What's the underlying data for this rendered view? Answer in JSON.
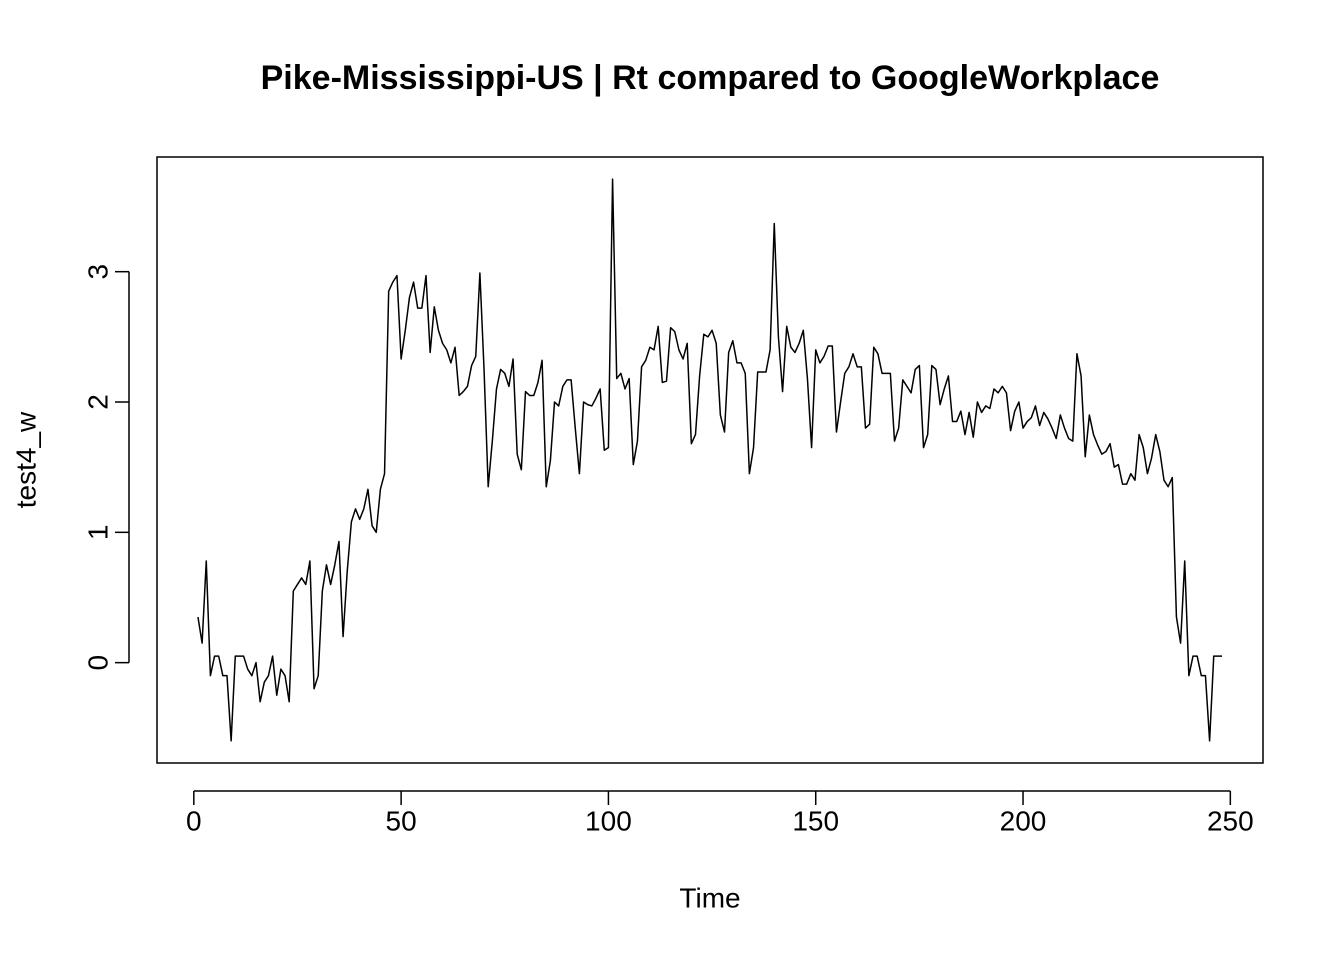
{
  "chart_data": {
    "type": "line",
    "title": "Pike-Mississippi-US | Rt compared to GoogleWorkplace",
    "x_label": "Time",
    "y_label": "test4_w",
    "x": [
      1,
      2,
      3,
      4,
      5,
      6,
      7,
      8,
      9,
      10,
      11,
      12,
      13,
      14,
      15,
      16,
      17,
      18,
      19,
      20,
      21,
      22,
      23,
      24,
      25,
      26,
      27,
      28,
      29,
      30,
      31,
      32,
      33,
      34,
      35,
      36,
      37,
      38,
      39,
      40,
      41,
      42,
      43,
      44,
      45,
      46,
      47,
      48,
      49,
      50,
      51,
      52,
      53,
      54,
      55,
      56,
      57,
      58,
      59,
      60,
      61,
      62,
      63,
      64,
      65,
      66,
      67,
      68,
      69,
      70,
      71,
      72,
      73,
      74,
      75,
      76,
      77,
      78,
      79,
      80,
      81,
      82,
      83,
      84,
      85,
      86,
      87,
      88,
      89,
      90,
      91,
      92,
      93,
      94,
      95,
      96,
      97,
      98,
      99,
      100,
      101,
      102,
      103,
      104,
      105,
      106,
      107,
      108,
      109,
      110,
      111,
      112,
      113,
      114,
      115,
      116,
      117,
      118,
      119,
      120,
      121,
      122,
      123,
      124,
      125,
      126,
      127,
      128,
      129,
      130,
      131,
      132,
      133,
      134,
      135,
      136,
      137,
      138,
      139,
      140,
      141,
      142,
      143,
      144,
      145,
      146,
      147,
      148,
      149,
      150,
      151,
      152,
      153,
      154,
      155,
      156,
      157,
      158,
      159,
      160,
      161,
      162,
      163,
      164,
      165,
      166,
      167,
      168,
      169,
      170,
      171,
      172,
      173,
      174,
      175,
      176,
      177,
      178,
      179,
      180,
      181,
      182,
      183,
      184,
      185,
      186,
      187,
      188,
      189,
      190,
      191,
      192,
      193,
      194,
      195,
      196,
      197,
      198,
      199,
      200,
      201,
      202,
      203,
      204,
      205,
      206,
      207,
      208,
      209,
      210,
      211,
      212,
      213,
      214,
      215,
      216,
      217,
      218,
      219,
      220,
      221,
      222,
      223,
      224,
      225,
      226,
      227,
      228,
      229,
      230,
      231,
      232,
      233,
      234,
      235,
      236,
      237,
      238,
      239,
      240,
      241,
      242,
      243,
      244,
      245,
      246,
      247,
      248
    ],
    "series": [
      {
        "color": "#000000",
        "values": [
          0.35,
          0.15,
          0.78,
          -0.1,
          0.05,
          0.05,
          -0.1,
          -0.1,
          -0.6,
          0.05,
          0.05,
          0.05,
          -0.05,
          -0.1,
          0.0,
          -0.3,
          -0.15,
          -0.1,
          0.05,
          -0.25,
          -0.05,
          -0.1,
          -0.3,
          0.55,
          0.6,
          0.65,
          0.6,
          0.78,
          -0.2,
          -0.1,
          0.55,
          0.75,
          0.6,
          0.75,
          0.93,
          0.2,
          0.7,
          1.08,
          1.18,
          1.1,
          1.18,
          1.33,
          1.05,
          1.0,
          1.33,
          1.45,
          2.85,
          2.92,
          2.97,
          2.33,
          2.55,
          2.8,
          2.92,
          2.72,
          2.72,
          2.97,
          2.38,
          2.73,
          2.55,
          2.45,
          2.4,
          2.3,
          2.42,
          2.05,
          2.08,
          2.12,
          2.28,
          2.35,
          2.99,
          2.25,
          1.35,
          1.7,
          2.1,
          2.25,
          2.22,
          2.12,
          2.33,
          1.6,
          1.48,
          2.08,
          2.05,
          2.05,
          2.15,
          2.32,
          1.35,
          1.55,
          2.0,
          1.97,
          2.12,
          2.17,
          2.17,
          1.8,
          1.45,
          2.0,
          1.98,
          1.97,
          2.03,
          2.1,
          1.63,
          1.65,
          3.71,
          2.18,
          2.22,
          2.1,
          2.18,
          1.52,
          1.7,
          2.27,
          2.32,
          2.42,
          2.4,
          2.58,
          2.15,
          2.16,
          2.57,
          2.54,
          2.4,
          2.33,
          2.45,
          1.68,
          1.75,
          2.2,
          2.52,
          2.5,
          2.55,
          2.45,
          1.9,
          1.77,
          2.38,
          2.47,
          2.3,
          2.3,
          2.22,
          1.45,
          1.65,
          2.23,
          2.23,
          2.23,
          2.4,
          3.37,
          2.5,
          2.08,
          2.58,
          2.42,
          2.38,
          2.45,
          2.55,
          2.18,
          1.65,
          2.4,
          2.3,
          2.35,
          2.43,
          2.43,
          1.77,
          2.0,
          2.22,
          2.27,
          2.37,
          2.27,
          2.27,
          1.8,
          1.83,
          2.42,
          2.37,
          2.22,
          2.22,
          2.22,
          1.7,
          1.8,
          2.17,
          2.12,
          2.07,
          2.25,
          2.28,
          1.65,
          1.75,
          2.28,
          2.25,
          1.98,
          2.1,
          2.2,
          1.85,
          1.85,
          1.93,
          1.75,
          1.92,
          1.73,
          2.0,
          1.92,
          1.97,
          1.95,
          2.1,
          2.07,
          2.12,
          2.07,
          1.78,
          1.93,
          2.0,
          1.8,
          1.85,
          1.88,
          1.97,
          1.82,
          1.92,
          1.87,
          1.8,
          1.72,
          1.9,
          1.8,
          1.72,
          1.7,
          2.37,
          2.2,
          1.58,
          1.9,
          1.75,
          1.67,
          1.6,
          1.62,
          1.68,
          1.5,
          1.52,
          1.37,
          1.37,
          1.45,
          1.4,
          1.75,
          1.65,
          1.45,
          1.57,
          1.75,
          1.62,
          1.4,
          1.35,
          1.42,
          0.35,
          0.15,
          0.78,
          -0.1,
          0.05,
          0.05,
          -0.1,
          -0.1,
          -0.6,
          0.05,
          0.05,
          0.05
        ]
      }
    ],
    "xlim": [
      -8.88,
      257.88
    ],
    "ylim": [
      -0.77,
      3.88
    ],
    "xticks": [
      0,
      50,
      100,
      150,
      200,
      250
    ],
    "yticks": [
      0,
      1,
      2,
      3
    ]
  }
}
